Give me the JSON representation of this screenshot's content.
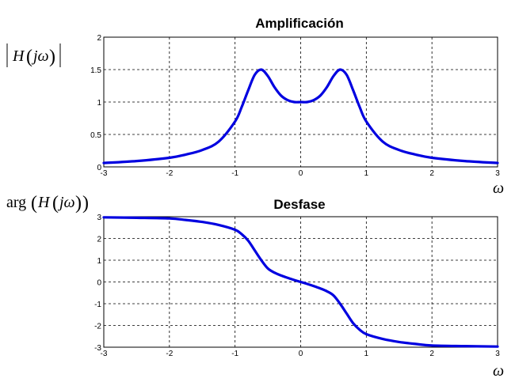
{
  "chart_data": [
    {
      "type": "line",
      "title": "Amplificación",
      "ylabel": "|H(jω)|",
      "xlabel": "ω",
      "xlim": [
        -3,
        3
      ],
      "ylim": [
        0,
        2
      ],
      "xticks": [
        -3,
        -2,
        -1,
        0,
        1,
        2,
        3
      ],
      "yticks": [
        0,
        0.5,
        1,
        1.5,
        2
      ],
      "xtick_labels": [
        "-3",
        "-2",
        "-1",
        "0",
        "1",
        "2",
        "3"
      ],
      "ytick_labels": [
        "0",
        "0.5",
        "1",
        "1.5",
        "2"
      ],
      "grid": true,
      "color": "#0000e0",
      "series": [
        {
          "x": [
            -3,
            -2.5,
            -2,
            -1.75,
            -1.5,
            -1.25,
            -1,
            -0.9,
            -0.8,
            -0.7,
            -0.6,
            -0.5,
            -0.4,
            -0.3,
            -0.2,
            -0.1,
            0,
            0.1,
            0.2,
            0.3,
            0.4,
            0.5,
            0.6,
            0.7,
            0.8,
            0.9,
            1,
            1.25,
            1.5,
            1.75,
            2,
            2.5,
            3
          ],
          "y": [
            0.06,
            0.09,
            0.14,
            0.19,
            0.26,
            0.39,
            0.7,
            0.92,
            1.18,
            1.42,
            1.5,
            1.4,
            1.23,
            1.1,
            1.03,
            1.0,
            1.0,
            1.0,
            1.03,
            1.1,
            1.23,
            1.4,
            1.5,
            1.42,
            1.18,
            0.92,
            0.7,
            0.39,
            0.26,
            0.19,
            0.14,
            0.09,
            0.06
          ]
        }
      ]
    },
    {
      "type": "line",
      "title": "Desfase",
      "ylabel": "arg(H(jω))",
      "xlabel": "ω",
      "xlim": [
        -3,
        3
      ],
      "ylim": [
        -3,
        3
      ],
      "xticks": [
        -3,
        -2,
        -1,
        0,
        1,
        2,
        3
      ],
      "yticks": [
        -3,
        -2,
        -1,
        0,
        1,
        2,
        3
      ],
      "xtick_labels": [
        "-3",
        "-2",
        "-1",
        "0",
        "1",
        "2",
        "3"
      ],
      "ytick_labels": [
        "-3",
        "-2",
        "-1",
        "0",
        "1",
        "2",
        "3"
      ],
      "grid": true,
      "color": "#0000e0",
      "series": [
        {
          "x": [
            -3,
            -2.5,
            -2,
            -1.75,
            -1.5,
            -1.25,
            -1,
            -0.9,
            -0.8,
            -0.7,
            -0.6,
            -0.5,
            -0.4,
            -0.3,
            -0.2,
            -0.1,
            0,
            0.1,
            0.2,
            0.3,
            0.4,
            0.5,
            0.6,
            0.7,
            0.8,
            0.9,
            1,
            1.25,
            1.5,
            1.75,
            2,
            2.5,
            3
          ],
          "y": [
            2.97,
            2.95,
            2.92,
            2.85,
            2.76,
            2.62,
            2.4,
            2.2,
            1.9,
            1.45,
            1.0,
            0.62,
            0.43,
            0.3,
            0.19,
            0.09,
            0.0,
            -0.09,
            -0.19,
            -0.3,
            -0.43,
            -0.62,
            -1.0,
            -1.45,
            -1.9,
            -2.2,
            -2.4,
            -2.62,
            -2.76,
            -2.85,
            -2.92,
            -2.95,
            -2.97
          ]
        }
      ]
    }
  ]
}
